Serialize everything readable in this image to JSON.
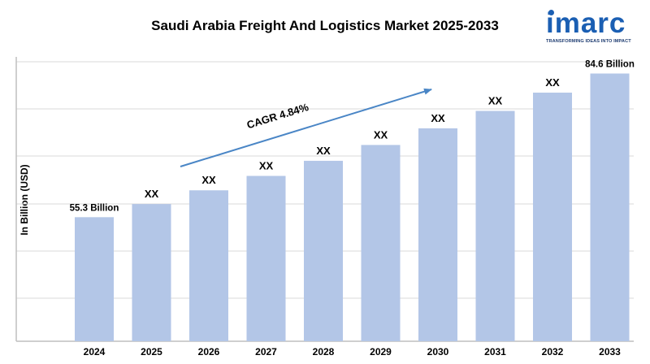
{
  "header": {
    "title": "Saudi Arabia Freight And Logistics Market 2025-2033"
  },
  "logo": {
    "name": "imarc",
    "tagline": "TRANSFORMING IDEAS INTO IMPACT"
  },
  "chart_data": {
    "type": "bar",
    "title": "Saudi Arabia Freight And Logistics Market 2025-2033",
    "xlabel": "",
    "ylabel": "In Billion (USD)",
    "categories": [
      "2024",
      "2025",
      "2026",
      "2027",
      "2028",
      "2029",
      "2030",
      "2031",
      "2032",
      "2033"
    ],
    "values": [
      55.3,
      57.98,
      60.78,
      63.72,
      66.8,
      70.03,
      73.42,
      76.97,
      80.7,
      84.6
    ],
    "data_labels": [
      "55.3 Billion",
      "XX",
      "XX",
      "XX",
      "XX",
      "XX",
      "XX",
      "XX",
      "XX",
      "84.6 Billion"
    ],
    "ylim": [
      30,
      87
    ],
    "grid": true,
    "legend": "none",
    "annotation": "CAGR 4.84%",
    "colors": {
      "bar": "#b3c6e7",
      "axis": "#bfbfbf",
      "grid": "#d9d9d9",
      "arrow": "#4a86c6"
    }
  }
}
